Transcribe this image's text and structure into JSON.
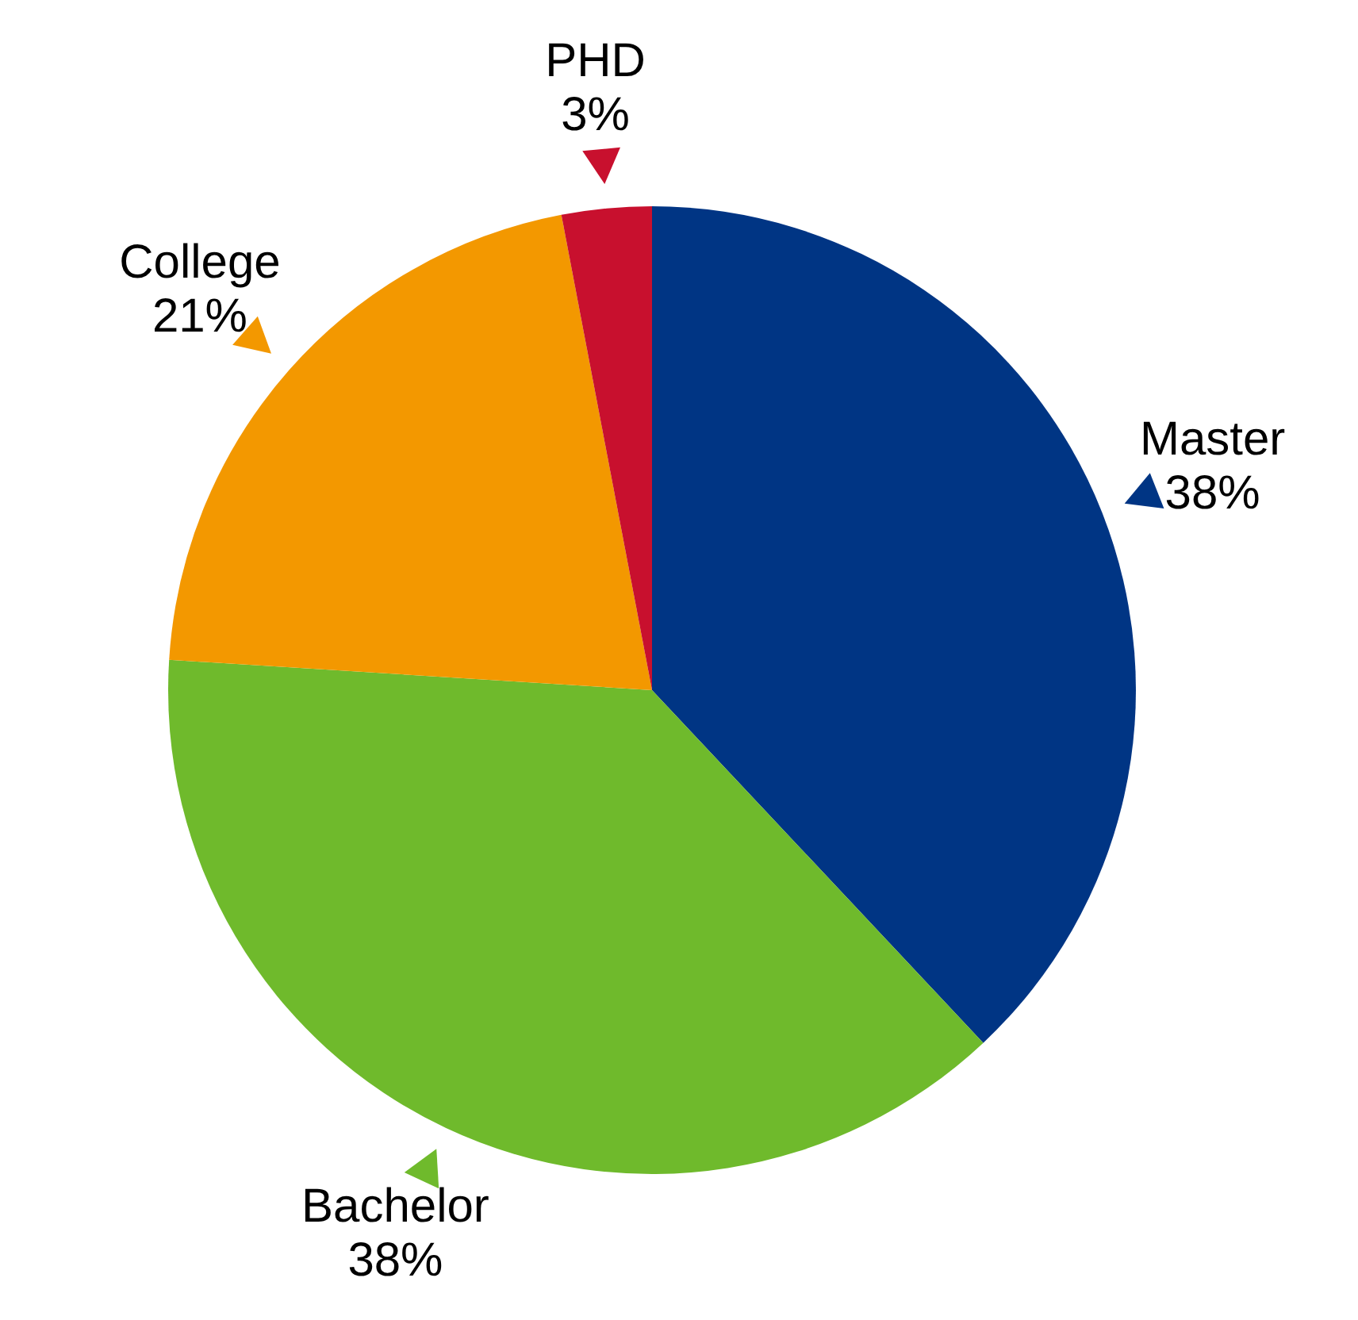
{
  "chart_data": {
    "type": "pie",
    "categories": [
      "Master",
      "Bachelor",
      "College",
      "PHD"
    ],
    "values": [
      38,
      38,
      21,
      3
    ],
    "value_labels": [
      "38%",
      "38%",
      "21%",
      "3%"
    ],
    "colors": [
      "#003584",
      "#6fba2c",
      "#f39800",
      "#c8102e"
    ]
  }
}
